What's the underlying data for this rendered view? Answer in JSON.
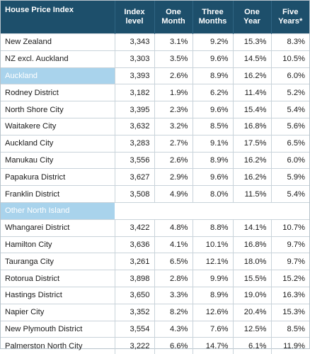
{
  "table": {
    "headers": [
      "House Price Index",
      "Index level",
      "One Month",
      "Three Months",
      "One Year",
      "Five Years*"
    ],
    "header_lines": [
      [
        "House Price Index"
      ],
      [
        "Index",
        "level"
      ],
      [
        "One",
        "Month"
      ],
      [
        "Three",
        "Months"
      ],
      [
        "One",
        "Year"
      ],
      [
        "Five",
        "Years*"
      ]
    ],
    "rows": [
      {
        "type": "data",
        "cells": [
          "New Zealand",
          "3,343",
          "3.1%",
          "9.2%",
          "15.3%",
          "8.3%"
        ]
      },
      {
        "type": "data",
        "cells": [
          "NZ excl. Auckland",
          "3,303",
          "3.5%",
          "9.6%",
          "14.5%",
          "10.5%"
        ]
      },
      {
        "type": "region",
        "cells": [
          "Auckland",
          "3,393",
          "2.6%",
          "8.9%",
          "16.2%",
          "6.0%"
        ]
      },
      {
        "type": "data",
        "cells": [
          "Rodney District",
          "3,182",
          "1.9%",
          "6.2%",
          "11.4%",
          "5.2%"
        ]
      },
      {
        "type": "data",
        "cells": [
          "North Shore City",
          "3,395",
          "2.3%",
          "9.6%",
          "15.4%",
          "5.4%"
        ]
      },
      {
        "type": "data",
        "cells": [
          "Waitakere City",
          "3,632",
          "3.2%",
          "8.5%",
          "16.8%",
          "5.6%"
        ]
      },
      {
        "type": "data",
        "cells": [
          "Auckland City",
          "3,283",
          "2.7%",
          "9.1%",
          "17.5%",
          "6.5%"
        ]
      },
      {
        "type": "data",
        "cells": [
          "Manukau City",
          "3,556",
          "2.6%",
          "8.9%",
          "16.2%",
          "6.0%"
        ]
      },
      {
        "type": "data",
        "cells": [
          "Papakura District",
          "3,627",
          "2.9%",
          "9.6%",
          "16.2%",
          "5.9%"
        ]
      },
      {
        "type": "data",
        "cells": [
          "Franklin District",
          "3,508",
          "4.9%",
          "8.0%",
          "11.5%",
          "5.4%"
        ]
      },
      {
        "type": "section",
        "cells": [
          "Other North Island",
          "",
          "",
          "",
          "",
          ""
        ]
      },
      {
        "type": "data",
        "cells": [
          "Whangarei District",
          "3,422",
          "4.8%",
          "8.8%",
          "14.1%",
          "10.7%"
        ]
      },
      {
        "type": "data",
        "cells": [
          "Hamilton City",
          "3,636",
          "4.1%",
          "10.1%",
          "16.8%",
          "9.7%"
        ]
      },
      {
        "type": "data",
        "cells": [
          "Tauranga City",
          "3,261",
          "6.5%",
          "12.1%",
          "18.0%",
          "9.7%"
        ]
      },
      {
        "type": "data",
        "cells": [
          "Rotorua District",
          "3,898",
          "2.8%",
          "9.9%",
          "15.5%",
          "15.2%"
        ]
      },
      {
        "type": "data",
        "cells": [
          "Hastings District",
          "3,650",
          "3.3%",
          "8.9%",
          "19.0%",
          "16.3%"
        ]
      },
      {
        "type": "data",
        "cells": [
          "Napier City",
          "3,352",
          "8.2%",
          "12.6%",
          "20.4%",
          "15.3%"
        ]
      },
      {
        "type": "data",
        "cells": [
          "New Plymouth District",
          "3,554",
          "4.3%",
          "7.6%",
          "12.5%",
          "8.5%"
        ]
      },
      {
        "type": "data",
        "cells": [
          "Palmerston North City",
          "3,222",
          "6.6%",
          "14.7%",
          "6.1%",
          "11.9%"
        ]
      }
    ]
  },
  "colors": {
    "header_bg": "#1d4f6b",
    "header_text": "#ffffff",
    "section_bg": "#a9d3ec",
    "grid_line": "#c9d3da"
  }
}
